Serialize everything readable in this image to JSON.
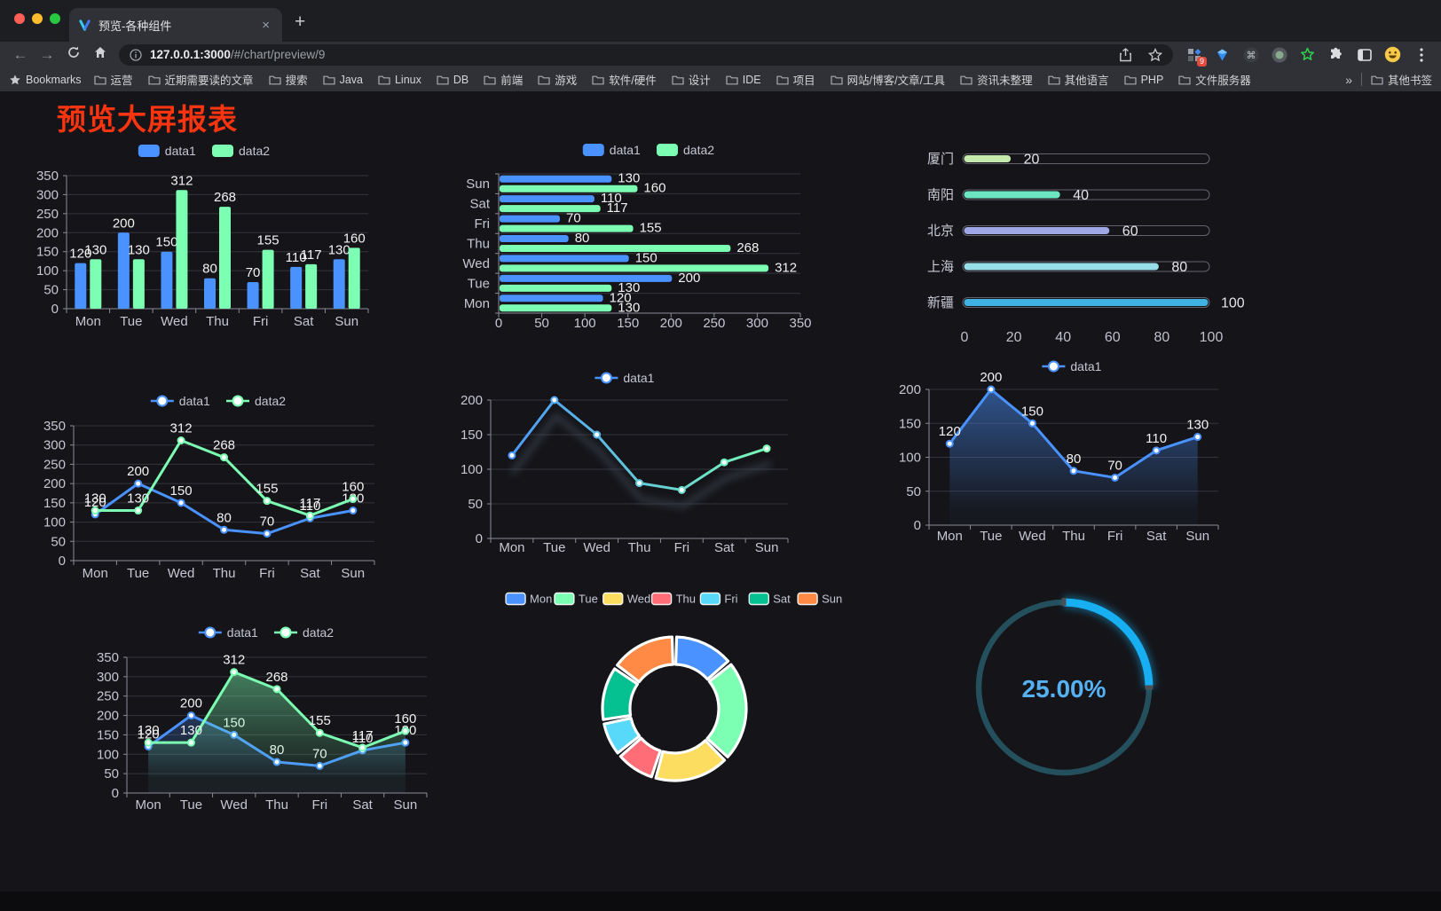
{
  "browser": {
    "tab_title": "预览-各种组件",
    "new_tab": "+",
    "close_tab": "×",
    "url_host": "127.0.0.1:3000",
    "url_path": "/#/chart/preview/9",
    "extension_badge": "9",
    "bookmarks_label": "Bookmarks",
    "bookmarks": [
      "运营",
      "近期需要读的文章",
      "搜索",
      "Java",
      "Linux",
      "DB",
      "前端",
      "游戏",
      "软件/硬件",
      "设计",
      "IDE",
      "项目",
      "网站/博客/文章/工具",
      "资讯未整理",
      "其他语言",
      "PHP",
      "文件服务器"
    ],
    "bookmarks_overflow": "»",
    "other_bookmarks": "其他书签"
  },
  "page": {
    "title": "预览大屏报表",
    "title_color": "#f93511",
    "background": "#151519"
  },
  "palette": {
    "blue": "#4992ff",
    "green": "#7cffb2",
    "yellow": "#fddd60",
    "red": "#ff6e76",
    "lightblue": "#58d9f9",
    "teal": "#05c091",
    "orange": "#ff8a45",
    "axis_text": "#c6c6d2",
    "axis_line": "#8a8a96",
    "grid_line": "#34343d",
    "value_label": "#f2f2f2"
  },
  "chart_data": [
    {
      "id": "bar-grouped",
      "type": "bar",
      "categories": [
        "Mon",
        "Tue",
        "Wed",
        "Thu",
        "Fri",
        "Sat",
        "Sun"
      ],
      "series": [
        {
          "name": "data1",
          "color": "#4992ff",
          "values": [
            120,
            200,
            150,
            80,
            70,
            110,
            130
          ]
        },
        {
          "name": "data2",
          "color": "#7cffb2",
          "values": [
            130,
            130,
            312,
            268,
            155,
            117,
            160
          ]
        }
      ],
      "ylim": [
        0,
        350
      ],
      "yticks": [
        0,
        50,
        100,
        150,
        200,
        250,
        300,
        350
      ],
      "value_labels": true,
      "legend_position": "top"
    },
    {
      "id": "bar-horizontal",
      "type": "bar-horizontal",
      "categories": [
        "Mon",
        "Tue",
        "Wed",
        "Thu",
        "Fri",
        "Sat",
        "Sun"
      ],
      "series": [
        {
          "name": "data1",
          "color": "#4992ff",
          "values": [
            120,
            200,
            150,
            80,
            70,
            110,
            130
          ]
        },
        {
          "name": "data2",
          "color": "#7cffb2",
          "values": [
            130,
            130,
            312,
            268,
            155,
            117,
            160
          ]
        }
      ],
      "xlim": [
        0,
        350
      ],
      "xticks": [
        0,
        50,
        100,
        150,
        200,
        250,
        300,
        350
      ],
      "value_labels": true,
      "category_order": "Mon at bottom, Sun at top"
    },
    {
      "id": "progress-bars",
      "type": "bar",
      "subtype": "progress",
      "max": 100,
      "xticks": [
        0,
        20,
        40,
        60,
        80,
        100
      ],
      "rows": [
        {
          "label": "厦门",
          "value": 20,
          "color": "#c4ebad"
        },
        {
          "label": "南阳",
          "value": 40,
          "color": "#6be6c1"
        },
        {
          "label": "北京",
          "value": 60,
          "color": "#a0a7e6"
        },
        {
          "label": "上海",
          "value": 80,
          "color": "#96dee8"
        },
        {
          "label": "新疆",
          "value": 100,
          "color": "#3fb1e3"
        }
      ]
    },
    {
      "id": "line-two",
      "type": "line",
      "categories": [
        "Mon",
        "Tue",
        "Wed",
        "Thu",
        "Fri",
        "Sat",
        "Sun"
      ],
      "series": [
        {
          "name": "data1",
          "color": "#4992ff",
          "values": [
            120,
            200,
            150,
            80,
            70,
            110,
            130
          ]
        },
        {
          "name": "data2",
          "color": "#7cffb2",
          "values": [
            130,
            130,
            312,
            268,
            155,
            117,
            160
          ]
        }
      ],
      "ylim": [
        0,
        350
      ],
      "yticks": [
        0,
        50,
        100,
        150,
        200,
        250,
        300,
        350
      ],
      "value_labels": true,
      "markers": true
    },
    {
      "id": "line-gradient",
      "type": "line",
      "categories": [
        "Mon",
        "Tue",
        "Wed",
        "Thu",
        "Fri",
        "Sat",
        "Sun"
      ],
      "series": [
        {
          "name": "data1",
          "gradient": [
            "#4992ff",
            "#7cffb2"
          ],
          "values": [
            120,
            200,
            150,
            80,
            70,
            110,
            130
          ]
        }
      ],
      "ylim": [
        0,
        200
      ],
      "yticks": [
        0,
        50,
        100,
        150,
        200
      ],
      "value_labels": false,
      "markers": true,
      "shadow": true
    },
    {
      "id": "area-single",
      "type": "area",
      "categories": [
        "Mon",
        "Tue",
        "Wed",
        "Thu",
        "Fri",
        "Sat",
        "Sun"
      ],
      "series": [
        {
          "name": "data1",
          "color": "#4992ff",
          "area": true,
          "values": [
            120,
            200,
            150,
            80,
            70,
            110,
            130
          ]
        }
      ],
      "ylim": [
        0,
        200
      ],
      "yticks": [
        0,
        50,
        100,
        150,
        200
      ],
      "value_labels": true,
      "markers": true
    },
    {
      "id": "area-two",
      "type": "area",
      "categories": [
        "Mon",
        "Tue",
        "Wed",
        "Thu",
        "Fri",
        "Sat",
        "Sun"
      ],
      "series": [
        {
          "name": "data1",
          "color": "#4992ff",
          "area": true,
          "values": [
            120,
            200,
            150,
            80,
            70,
            110,
            130
          ]
        },
        {
          "name": "data2",
          "color": "#7cffb2",
          "area": true,
          "values": [
            130,
            130,
            312,
            268,
            155,
            117,
            160
          ]
        }
      ],
      "ylim": [
        0,
        350
      ],
      "yticks": [
        0,
        50,
        100,
        150,
        200,
        250,
        300,
        350
      ],
      "value_labels": true,
      "markers": true
    },
    {
      "id": "donut",
      "type": "pie",
      "labels": [
        "Mon",
        "Tue",
        "Wed",
        "Thu",
        "Fri",
        "Sat",
        "Sun"
      ],
      "values": [
        120,
        200,
        150,
        80,
        70,
        110,
        130
      ],
      "colors": [
        "#4992ff",
        "#7cffb2",
        "#fddd60",
        "#ff6e76",
        "#58d9f9",
        "#05c091",
        "#ff8a45"
      ],
      "inner_radius_ratio": 0.62,
      "legend_position": "top"
    },
    {
      "id": "gauge",
      "type": "gauge",
      "value": 25,
      "display": "25.00%",
      "color": "#17aef2",
      "track_color": "#24505e",
      "text_color": "#55b1f2"
    }
  ]
}
